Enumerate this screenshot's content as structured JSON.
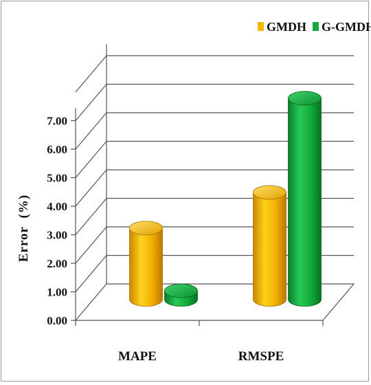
{
  "chart_data": {
    "type": "bar",
    "style": "3d-cylinder",
    "categories": [
      "MAPE",
      "RMSPE"
    ],
    "series": [
      {
        "name": "GMDH",
        "values": [
          2.5,
          3.75
        ],
        "color": "#f5b800"
      },
      {
        "name": "G-GMDH",
        "values": [
          0.3,
          7.05
        ],
        "color": "#12a83a"
      }
    ],
    "ylabel": "Error  (%)",
    "xlabel": "",
    "ylim": [
      0,
      7
    ],
    "yticks": [
      "0.00",
      "1.00",
      "2.00",
      "3.00",
      "4.00",
      "5.00",
      "6.00",
      "7.00"
    ],
    "grid": true,
    "legend": "top-right"
  }
}
